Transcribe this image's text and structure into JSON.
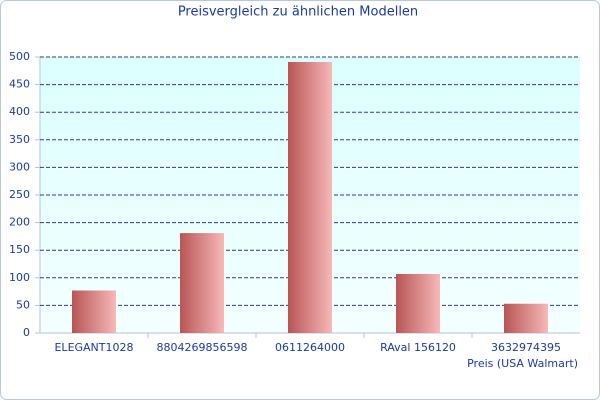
{
  "chart_data": {
    "type": "bar",
    "title": "Preisvergleich zu ähnlichen Modellen",
    "x_label": "Preis (USA Walmart)",
    "categories": [
      "ELEGANT1028",
      "8804269856598",
      "0611264000",
      "RAval 156120",
      "3632974395"
    ],
    "values": [
      77,
      181,
      491,
      107,
      53
    ],
    "color": "#b85555",
    "ylim": [
      0,
      500
    ],
    "yticks": [
      0,
      50,
      100,
      150,
      200,
      250,
      300,
      350,
      400,
      450,
      500
    ],
    "grid": true
  }
}
